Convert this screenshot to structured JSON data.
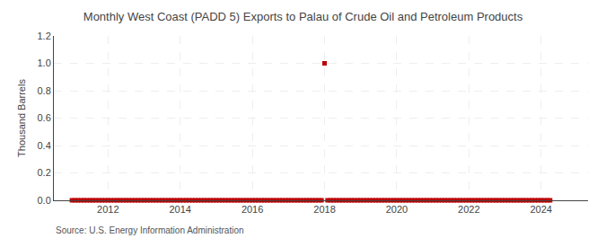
{
  "chart_data": {
    "type": "scatter",
    "title": "Monthly West Coast (PADD 5) Exports to Palau of Crude Oil and Petroleum Products",
    "ylabel": "Thousand Barrels",
    "annotations": [
      "Source: U.S. Energy Information Administration"
    ],
    "color": "#bb0000",
    "marker": "square",
    "grid": true,
    "xlim": [
      2010.5,
      2025.3
    ],
    "xticks": [
      2012,
      2014,
      2016,
      2018,
      2020,
      2022,
      2024
    ],
    "ylim": [
      0.0,
      1.2
    ],
    "yticks": [
      {
        "value": 0.0,
        "label": "0.0"
      },
      0.2,
      0.4,
      0.6,
      0.8,
      {
        "value": 1.0,
        "label": "1.0"
      },
      1.2
    ],
    "x": [
      2011.0,
      2011.083,
      2011.167,
      2011.25,
      2011.333,
      2011.417,
      2011.5,
      2011.583,
      2011.667,
      2011.75,
      2011.833,
      2011.917,
      2012.0,
      2012.083,
      2012.167,
      2012.25,
      2012.333,
      2012.417,
      2012.5,
      2012.583,
      2012.667,
      2012.75,
      2012.833,
      2012.917,
      2013.0,
      2013.083,
      2013.167,
      2013.25,
      2013.333,
      2013.417,
      2013.5,
      2013.583,
      2013.667,
      2013.75,
      2013.833,
      2013.917,
      2014.0,
      2014.083,
      2014.167,
      2014.25,
      2014.333,
      2014.417,
      2014.5,
      2014.583,
      2014.667,
      2014.75,
      2014.833,
      2014.917,
      2015.0,
      2015.083,
      2015.167,
      2015.25,
      2015.333,
      2015.417,
      2015.5,
      2015.583,
      2015.667,
      2015.75,
      2015.833,
      2015.917,
      2016.0,
      2016.083,
      2016.167,
      2016.25,
      2016.333,
      2016.417,
      2016.5,
      2016.583,
      2016.667,
      2016.75,
      2016.833,
      2016.917,
      2017.0,
      2017.083,
      2017.167,
      2017.25,
      2017.333,
      2017.417,
      2017.5,
      2017.583,
      2017.667,
      2017.75,
      2017.833,
      2017.917,
      2018.0,
      2018.083,
      2018.167,
      2018.25,
      2018.333,
      2018.417,
      2018.5,
      2018.583,
      2018.667,
      2018.75,
      2018.833,
      2018.917,
      2019.0,
      2019.083,
      2019.167,
      2019.25,
      2019.333,
      2019.417,
      2019.5,
      2019.583,
      2019.667,
      2019.75,
      2019.833,
      2019.917,
      2020.0,
      2020.083,
      2020.167,
      2020.25,
      2020.333,
      2020.417,
      2020.5,
      2020.583,
      2020.667,
      2020.75,
      2020.833,
      2020.917,
      2021.0,
      2021.083,
      2021.167,
      2021.25,
      2021.333,
      2021.417,
      2021.5,
      2021.583,
      2021.667,
      2021.75,
      2021.833,
      2021.917,
      2022.0,
      2022.083,
      2022.167,
      2022.25,
      2022.333,
      2022.417,
      2022.5,
      2022.583,
      2022.667,
      2022.75,
      2022.833,
      2022.917,
      2023.0,
      2023.083,
      2023.167,
      2023.25,
      2023.333,
      2023.417,
      2023.5,
      2023.583,
      2023.667,
      2023.75,
      2023.833,
      2023.917,
      2024.0,
      2024.083,
      2024.167,
      2024.25
    ],
    "values": [
      0.0,
      0.0,
      0.0,
      0.0,
      0.0,
      0.0,
      0.0,
      0.0,
      0.0,
      0.0,
      0.0,
      0.0,
      0.0,
      0.0,
      0.0,
      0.0,
      0.0,
      0.0,
      0.0,
      0.0,
      0.0,
      0.0,
      0.0,
      0.0,
      0.0,
      0.0,
      0.0,
      0.0,
      0.0,
      0.0,
      0.0,
      0.0,
      0.0,
      0.0,
      0.0,
      0.0,
      0.0,
      0.0,
      0.0,
      0.0,
      0.0,
      0.0,
      0.0,
      0.0,
      0.0,
      0.0,
      0.0,
      0.0,
      0.0,
      0.0,
      0.0,
      0.0,
      0.0,
      0.0,
      0.0,
      0.0,
      0.0,
      0.0,
      0.0,
      0.0,
      0.0,
      0.0,
      0.0,
      0.0,
      0.0,
      0.0,
      0.0,
      0.0,
      0.0,
      0.0,
      0.0,
      0.0,
      0.0,
      0.0,
      0.0,
      0.0,
      0.0,
      0.0,
      0.0,
      0.0,
      0.0,
      0.0,
      0.0,
      0.0,
      1.0,
      0.0,
      0.0,
      0.0,
      0.0,
      0.0,
      0.0,
      0.0,
      0.0,
      0.0,
      0.0,
      0.0,
      0.0,
      0.0,
      0.0,
      0.0,
      0.0,
      0.0,
      0.0,
      0.0,
      0.0,
      0.0,
      0.0,
      0.0,
      0.0,
      0.0,
      0.0,
      0.0,
      0.0,
      0.0,
      0.0,
      0.0,
      0.0,
      0.0,
      0.0,
      0.0,
      0.0,
      0.0,
      0.0,
      0.0,
      0.0,
      0.0,
      0.0,
      0.0,
      0.0,
      0.0,
      0.0,
      0.0,
      0.0,
      0.0,
      0.0,
      0.0,
      0.0,
      0.0,
      0.0,
      0.0,
      0.0,
      0.0,
      0.0,
      0.0,
      0.0,
      0.0,
      0.0,
      0.0,
      0.0,
      0.0,
      0.0,
      0.0,
      0.0,
      0.0,
      0.0,
      0.0,
      0.0,
      0.0,
      0.0,
      0.0
    ]
  }
}
